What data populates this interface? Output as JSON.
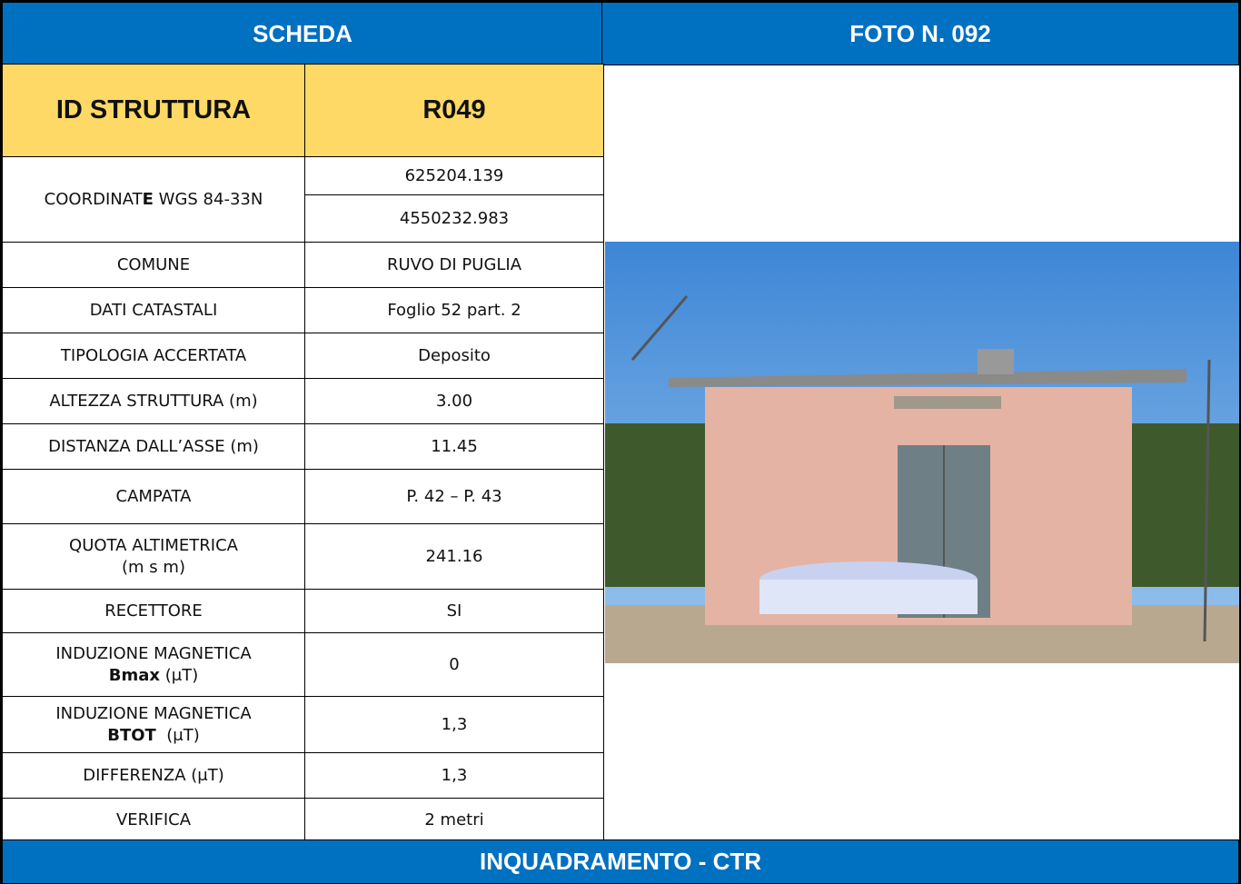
{
  "header": {
    "left": "SCHEDA",
    "right": "FOTO N. 092"
  },
  "id_row": {
    "label": "ID STRUTTURA",
    "value": "R049"
  },
  "rows": [
    {
      "label_lines": [
        [
          {
            "text": "COORDINAT"
          },
          {
            "text": "E",
            "bold": true
          },
          {
            "text": " WGS 84-33N"
          }
        ]
      ],
      "values": [
        "625204.139",
        "4550232.983"
      ]
    },
    {
      "label_lines": [
        [
          {
            "text": "COMUNE"
          }
        ]
      ],
      "values": [
        "RUVO DI PUGLIA"
      ]
    },
    {
      "label_lines": [
        [
          {
            "text": "DATI CATASTALI"
          }
        ]
      ],
      "values": [
        "Foglio 52 part. 2"
      ]
    },
    {
      "label_lines": [
        [
          {
            "text": "TIPOLOGIA ACCERTATA"
          }
        ]
      ],
      "values": [
        "Deposito"
      ]
    },
    {
      "label_lines": [
        [
          {
            "text": "ALTEZZA STRUTTURA (m)"
          }
        ]
      ],
      "values": [
        "3.00"
      ]
    },
    {
      "label_lines": [
        [
          {
            "text": "DISTANZA DALL’ASSE (m)"
          }
        ]
      ],
      "values": [
        "11.45"
      ]
    },
    {
      "label_lines": [
        [
          {
            "text": "CAMPATA"
          }
        ]
      ],
      "values": [
        "P. 42 – P. 43"
      ]
    },
    {
      "label_lines": [
        [
          {
            "text": "QUOTA ALTIMETRICA"
          }
        ],
        [
          {
            "text": "(m s m)"
          }
        ]
      ],
      "values": [
        "241.16"
      ]
    },
    {
      "label_lines": [
        [
          {
            "text": "RECETTORE"
          }
        ]
      ],
      "values": [
        "SI"
      ]
    },
    {
      "label_lines": [
        [
          {
            "text": "INDUZIONE MAGNETICA"
          }
        ],
        [
          {
            "text": "Bmax",
            "bold": true
          },
          {
            "text": " (μT)"
          }
        ]
      ],
      "values": [
        "0"
      ]
    },
    {
      "label_lines": [
        [
          {
            "text": "INDUZIONE MAGNETICA"
          }
        ],
        [
          {
            "text": "BTOT",
            "bold": true
          },
          {
            "text": "  (μT)"
          }
        ]
      ],
      "values": [
        "1,3"
      ]
    },
    {
      "label_lines": [
        [
          {
            "text": "DIFFERENZA (μT)"
          }
        ]
      ],
      "values": [
        "1,3"
      ]
    },
    {
      "label_lines": [
        [
          {
            "text": "VERIFICA"
          }
        ]
      ],
      "values": [
        "2 metri"
      ]
    }
  ],
  "footer": "INQUADRAMENTO - CTR"
}
